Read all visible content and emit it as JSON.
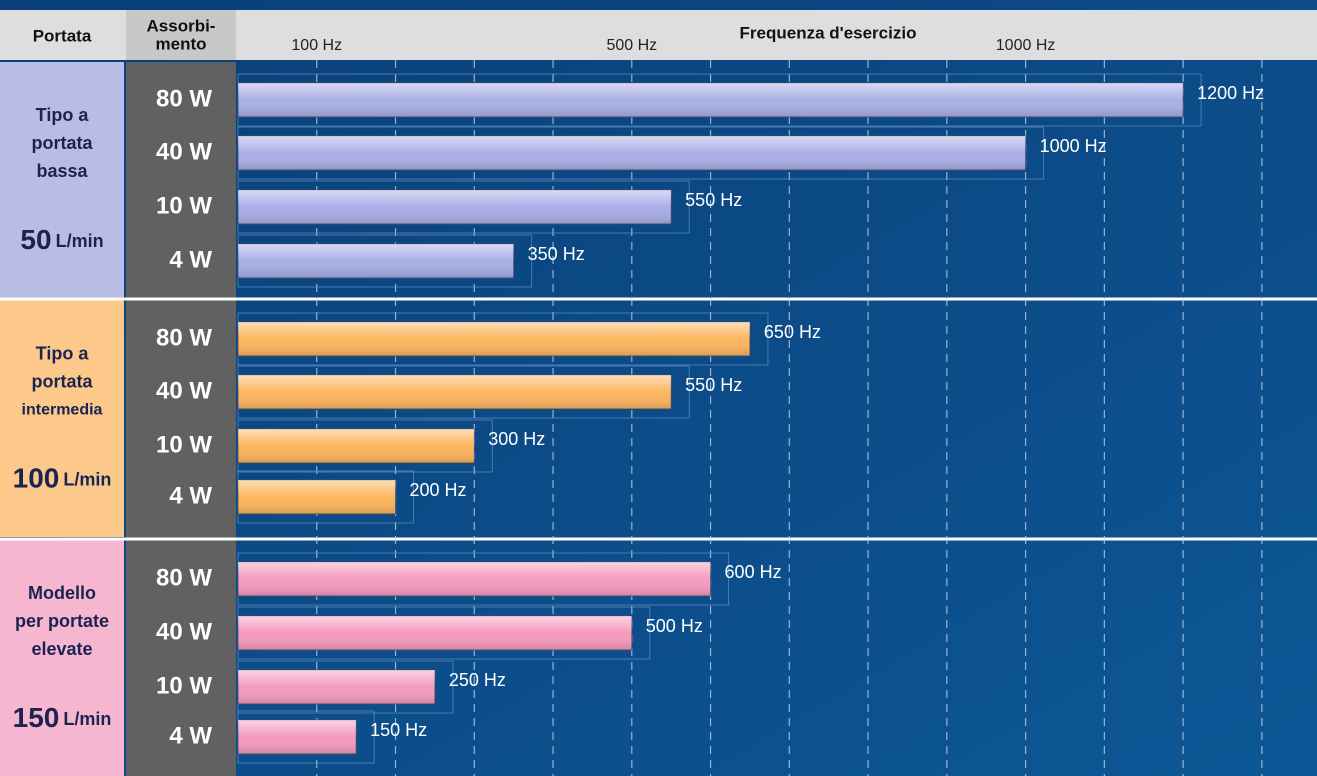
{
  "chart_data": {
    "type": "bar",
    "orientation": "horizontal",
    "header": {
      "portata": "Portata",
      "absorption": [
        "Assorbi-",
        "mento"
      ],
      "title": "Frequenza d'esercizio"
    },
    "xlim": [
      0,
      1370
    ],
    "xticks": [
      {
        "value": 100,
        "label": "100 Hz"
      },
      {
        "value": 500,
        "label": "500 Hz"
      },
      {
        "value": 1000,
        "label": "1000 Hz"
      }
    ],
    "xgrid": [
      100,
      200,
      300,
      400,
      500,
      600,
      700,
      800,
      900,
      1000,
      1100,
      1200,
      1300
    ],
    "groups": [
      {
        "label": [
          "Tipo a",
          "portata",
          "bassa"
        ],
        "flow": "50",
        "flow_unit": "L/min",
        "color": "#a9aee6",
        "panel": "#b9bde3",
        "categories": [
          "80 W",
          "40 W",
          "10 W",
          "4 W"
        ],
        "values": [
          1200,
          1000,
          550,
          350
        ],
        "value_labels": [
          "1200 Hz",
          "1000 Hz",
          "550 Hz",
          "350 Hz"
        ]
      },
      {
        "label": [
          "Tipo a",
          "portata",
          "intermedia"
        ],
        "flow": "100",
        "flow_unit": "L/min",
        "color": "#fdb55f",
        "panel": "#fcc98b",
        "categories": [
          "80 W",
          "40 W",
          "10 W",
          "4 W"
        ],
        "values": [
          650,
          550,
          300,
          200
        ],
        "value_labels": [
          "650 Hz",
          "550 Hz",
          "300 Hz",
          "200 Hz"
        ]
      },
      {
        "label": [
          "Modello",
          "per portate",
          "elevate"
        ],
        "flow": "150",
        "flow_unit": "L/min",
        "color": "#f59bbd",
        "panel": "#f7b6cf",
        "categories": [
          "80 W",
          "40 W",
          "10 W",
          "4 W"
        ],
        "values": [
          600,
          500,
          250,
          150
        ],
        "value_labels": [
          "600 Hz",
          "500 Hz",
          "250 Hz",
          "150 Hz"
        ]
      }
    ]
  }
}
